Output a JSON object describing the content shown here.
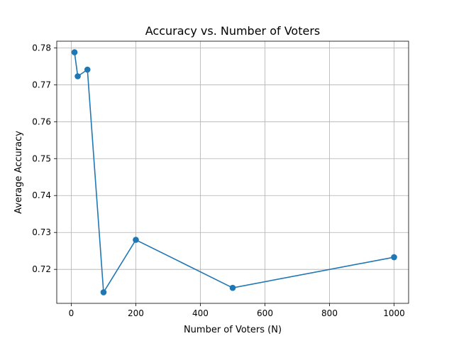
{
  "chart_data": {
    "type": "line",
    "title": "Accuracy vs. Number of Voters",
    "xlabel": "Number of Voters (N)",
    "ylabel": "Average Accuracy",
    "xlim": [
      -45,
      1045
    ],
    "ylim": [
      0.7108,
      0.7818
    ],
    "xticks": [
      0,
      200,
      400,
      600,
      800,
      1000
    ],
    "yticks": [
      0.72,
      0.73,
      0.74,
      0.75,
      0.76,
      0.77,
      0.78
    ],
    "xtick_labels": [
      "0",
      "200",
      "400",
      "600",
      "800",
      "1000"
    ],
    "ytick_labels": [
      "0.72",
      "0.73",
      "0.74",
      "0.75",
      "0.76",
      "0.77",
      "0.78"
    ],
    "grid": true,
    "series": [
      {
        "color": "#1f77b4",
        "marker": "circle",
        "x": [
          10,
          20,
          50,
          100,
          200,
          500,
          1000
        ],
        "y": [
          0.7788,
          0.7723,
          0.7741,
          0.7138,
          0.728,
          0.715,
          0.7233
        ]
      }
    ]
  }
}
